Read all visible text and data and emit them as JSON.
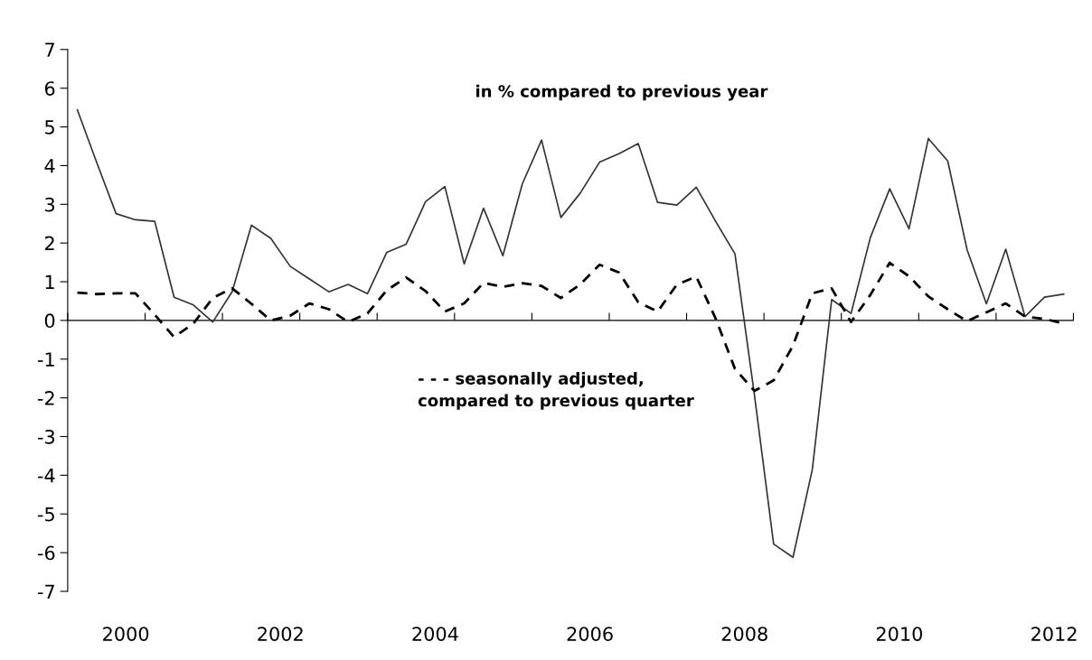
{
  "chart_data": {
    "type": "line",
    "x": [
      1999.375,
      1999.625,
      1999.875,
      2000.125,
      2000.375,
      2000.625,
      2000.875,
      2001.125,
      2001.375,
      2001.625,
      2001.875,
      2002.125,
      2002.375,
      2002.625,
      2002.875,
      2003.125,
      2003.375,
      2003.625,
      2003.875,
      2004.125,
      2004.375,
      2004.625,
      2004.875,
      2005.125,
      2005.375,
      2005.625,
      2005.875,
      2006.125,
      2006.375,
      2006.625,
      2006.875,
      2007.125,
      2007.375,
      2007.625,
      2007.875,
      2008.125,
      2008.375,
      2008.625,
      2008.875,
      2009.125,
      2009.375,
      2009.625,
      2009.875,
      2010.125,
      2010.375,
      2010.625,
      2010.875,
      2011.125,
      2011.375,
      2011.625,
      2011.875,
      2012.125
    ],
    "series": [
      {
        "color": "#333333",
        "line_style": "solid",
        "values": [
          5.44,
          4.08,
          2.76,
          2.6,
          2.56,
          0.6,
          0.4,
          -0.04,
          0.74,
          2.46,
          2.12,
          1.4,
          1.07,
          0.74,
          0.93,
          0.69,
          1.76,
          1.97,
          3.07,
          3.46,
          1.46,
          2.9,
          1.67,
          3.52,
          4.66,
          2.66,
          3.29,
          4.09,
          4.31,
          4.57,
          3.05,
          2.98,
          3.44,
          2.56,
          1.72,
          -1.9,
          -5.78,
          -6.12,
          -3.85,
          0.54,
          0.18,
          2.14,
          3.4,
          2.37,
          4.7,
          4.12,
          1.83,
          0.43,
          1.84,
          0.1,
          0.6,
          0.68
        ]
      },
      {
        "color": "#000000",
        "line_style": "dashed",
        "values": [
          0.72,
          0.68,
          0.7,
          0.7,
          0.15,
          -0.43,
          -0.08,
          0.58,
          0.83,
          0.43,
          0.0,
          0.12,
          0.44,
          0.29,
          -0.04,
          0.18,
          0.78,
          1.11,
          0.76,
          0.23,
          0.44,
          0.97,
          0.87,
          0.96,
          0.89,
          0.58,
          0.93,
          1.44,
          1.24,
          0.47,
          0.23,
          0.93,
          1.13,
          0.05,
          -1.25,
          -1.82,
          -1.55,
          -0.65,
          0.7,
          0.83,
          -0.04,
          0.66,
          1.49,
          1.14,
          0.62,
          0.29,
          -0.02,
          0.21,
          0.44,
          0.1,
          0.04,
          -0.08
        ]
      }
    ],
    "xlim": [
      1999.25,
      2012.25
    ],
    "xticks": [
      {
        "value": 1999.25,
        "label": null
      },
      {
        "value": 2000,
        "label": "2000"
      },
      {
        "value": 2000.25,
        "label": null
      },
      {
        "value": 2001.25,
        "label": null
      },
      {
        "value": 2002,
        "label": "2002"
      },
      {
        "value": 2002.25,
        "label": null
      },
      {
        "value": 2003.25,
        "label": null
      },
      {
        "value": 2004,
        "label": "2004"
      },
      {
        "value": 2004.25,
        "label": null
      },
      {
        "value": 2005.25,
        "label": null
      },
      {
        "value": 2006,
        "label": "2006"
      },
      {
        "value": 2006.25,
        "label": null
      },
      {
        "value": 2007.25,
        "label": null
      },
      {
        "value": 2008,
        "label": "2008"
      },
      {
        "value": 2008.25,
        "label": null
      },
      {
        "value": 2009.25,
        "label": null
      },
      {
        "value": 2010,
        "label": "2010"
      },
      {
        "value": 2010.25,
        "label": null
      },
      {
        "value": 2011.25,
        "label": null
      },
      {
        "value": 2012,
        "label": "2012"
      },
      {
        "value": 2012.25,
        "label": null
      }
    ],
    "ylim": [
      -7,
      7
    ],
    "yticks": [
      -7,
      -6,
      -5,
      -4,
      -3,
      -2,
      -1,
      0,
      1,
      2,
      3,
      4,
      5,
      6,
      7
    ],
    "marker": "none",
    "annotations": [
      "in % compared to previous year",
      "- - - seasonally adjusted,\ncompared to previous quarter"
    ]
  }
}
